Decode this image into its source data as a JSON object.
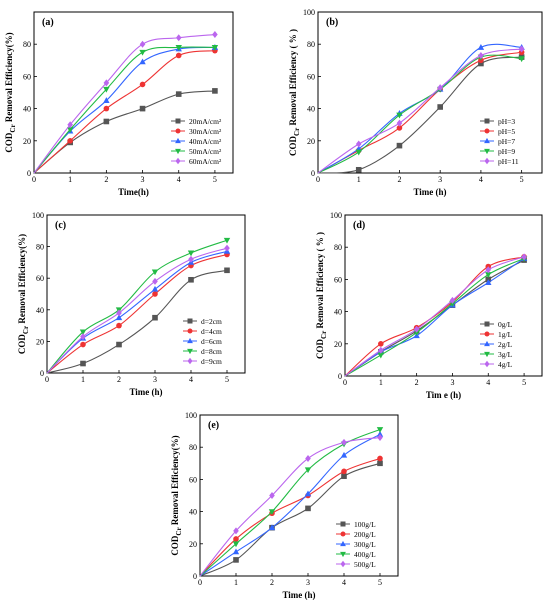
{
  "chart_data": [
    {
      "type": "line",
      "panel_label": "(a)",
      "xlabel": "Time(h)",
      "ylabel_main": "COD",
      "ylabel_sub": "Cr",
      "ylabel_rest": " Removal Efficiency(%)",
      "xlim": [
        0,
        5.5
      ],
      "ylim": [
        0,
        100
      ],
      "xticks": [
        "0",
        "1",
        "2",
        "3",
        "4",
        "5"
      ],
      "yticks": [
        "0",
        "20",
        "40",
        "60",
        "80"
      ],
      "legend_position": "lower-right",
      "x": [
        0,
        1,
        2,
        3,
        4,
        5
      ],
      "series": [
        {
          "name": "20mA/cm²",
          "color": "#555555",
          "marker": "square",
          "values": [
            0,
            19,
            32,
            40,
            49,
            51
          ]
        },
        {
          "name": "30mA/cm²",
          "color": "#ee3333",
          "marker": "circle",
          "values": [
            0,
            20,
            40,
            55,
            73,
            76
          ]
        },
        {
          "name": "40mA/cm²",
          "color": "#3366ff",
          "marker": "triangle-up",
          "values": [
            0,
            26,
            45,
            69,
            77,
            78
          ]
        },
        {
          "name": "50mA/cm²",
          "color": "#22bb44",
          "marker": "triangle-down",
          "values": [
            0,
            27,
            52,
            75,
            78,
            78
          ]
        },
        {
          "name": "60mA/cm²",
          "color": "#bb66ee",
          "marker": "diamond",
          "values": [
            0,
            30,
            56,
            80,
            84,
            86
          ]
        }
      ]
    },
    {
      "type": "line",
      "panel_label": "(b)",
      "xlabel": "Time (h)",
      "ylabel_main": "COD",
      "ylabel_sub": "Cr",
      "ylabel_rest": " Removal Efficiency ( % )",
      "xlim": [
        0,
        5.5
      ],
      "ylim": [
        0,
        100
      ],
      "xticks": [
        "0",
        "1",
        "2",
        "3",
        "4",
        "5"
      ],
      "yticks": [
        "0",
        "20",
        "40",
        "60",
        "80",
        "100"
      ],
      "legend_position": "lower-right",
      "x": [
        0,
        1,
        2,
        3,
        4,
        5
      ],
      "series": [
        {
          "name": "pH=3",
          "color": "#555555",
          "marker": "square",
          "values": [
            0,
            2,
            17,
            41,
            68,
            72
          ]
        },
        {
          "name": "pH=5",
          "color": "#ee3333",
          "marker": "circle",
          "values": [
            0,
            14,
            28,
            52,
            70,
            75
          ]
        },
        {
          "name": "pH=7",
          "color": "#3366ff",
          "marker": "triangle-up",
          "values": [
            0,
            15,
            37,
            52,
            78,
            78
          ]
        },
        {
          "name": "pH=9",
          "color": "#22bb44",
          "marker": "triangle-down",
          "values": [
            0,
            13,
            36,
            52,
            72,
            71
          ]
        },
        {
          "name": "pH=11",
          "color": "#bb66ee",
          "marker": "diamond",
          "values": [
            0,
            18,
            31,
            53,
            73,
            77
          ]
        }
      ]
    },
    {
      "type": "line",
      "panel_label": "(c)",
      "xlabel": "Time (h)",
      "ylabel_main": "COD",
      "ylabel_sub": "Cr",
      "ylabel_rest": " Removal Efficiency(%)",
      "xlim": [
        0,
        5.5
      ],
      "ylim": [
        0,
        100
      ],
      "xticks": [
        "0",
        "1",
        "2",
        "3",
        "4",
        "5"
      ],
      "yticks": [
        "0",
        "20",
        "40",
        "60",
        "80",
        "100"
      ],
      "legend_position": "lower-right",
      "x": [
        0,
        1,
        2,
        3,
        4,
        5
      ],
      "series": [
        {
          "name": "d=2cm",
          "color": "#555555",
          "marker": "square",
          "values": [
            0,
            6,
            18,
            35,
            59,
            65
          ]
        },
        {
          "name": "d=4cm",
          "color": "#ee3333",
          "marker": "circle",
          "values": [
            0,
            18,
            30,
            50,
            68,
            75
          ]
        },
        {
          "name": "d=6cm",
          "color": "#3366ff",
          "marker": "triangle-up",
          "values": [
            0,
            22,
            35,
            53,
            70,
            77
          ]
        },
        {
          "name": "d=8cm",
          "color": "#22bb44",
          "marker": "triangle-down",
          "values": [
            0,
            26,
            40,
            64,
            76,
            84
          ]
        },
        {
          "name": "d=9cm",
          "color": "#bb66ee",
          "marker": "diamond",
          "values": [
            0,
            23,
            38,
            58,
            72,
            79
          ]
        }
      ]
    },
    {
      "type": "line",
      "panel_label": "(d)",
      "xlabel": "Tim e (h)",
      "ylabel_main": "COD",
      "ylabel_sub": "Cr",
      "ylabel_rest": " Removal Efficiency ( % )",
      "xlim": [
        0,
        5.5
      ],
      "ylim": [
        0,
        100
      ],
      "xticks": [
        "0",
        "1",
        "2",
        "3",
        "4",
        "5"
      ],
      "yticks": [
        "0",
        "20",
        "40",
        "60",
        "80",
        "100"
      ],
      "legend_position": "lower-right",
      "x": [
        0,
        1,
        2,
        3,
        4,
        5
      ],
      "series": [
        {
          "name": "0g/L",
          "color": "#555555",
          "marker": "square",
          "values": [
            0,
            15,
            28,
            44,
            60,
            72
          ]
        },
        {
          "name": "1g/L",
          "color": "#ee3333",
          "marker": "circle",
          "values": [
            0,
            20,
            30,
            46,
            68,
            74
          ]
        },
        {
          "name": "2g/L",
          "color": "#3366ff",
          "marker": "triangle-up",
          "values": [
            0,
            15,
            25,
            44,
            58,
            73
          ]
        },
        {
          "name": "3g/L",
          "color": "#22bb44",
          "marker": "triangle-down",
          "values": [
            0,
            13,
            27,
            45,
            63,
            73
          ]
        },
        {
          "name": "4g/L",
          "color": "#bb66ee",
          "marker": "diamond",
          "values": [
            0,
            16,
            29,
            47,
            66,
            74
          ]
        }
      ]
    },
    {
      "type": "line",
      "panel_label": "(e)",
      "xlabel": "Time (h)",
      "ylabel_main": "COD",
      "ylabel_sub": "Cr",
      "ylabel_rest": " Removal Efficiency(%)",
      "xlim": [
        0,
        5.5
      ],
      "ylim": [
        0,
        100
      ],
      "xticks": [
        "0",
        "1",
        "2",
        "3",
        "4",
        "5"
      ],
      "yticks": [
        "0",
        "20",
        "40",
        "60",
        "80",
        "100"
      ],
      "legend_position": "lower-right",
      "x": [
        0,
        1,
        2,
        3,
        4,
        5
      ],
      "series": [
        {
          "name": "100g/L",
          "color": "#555555",
          "marker": "square",
          "values": [
            0,
            10,
            30,
            42,
            62,
            70
          ]
        },
        {
          "name": "200g/L",
          "color": "#ee3333",
          "marker": "circle",
          "values": [
            0,
            23,
            39,
            50,
            65,
            73
          ]
        },
        {
          "name": "300g/L",
          "color": "#3366ff",
          "marker": "triangle-up",
          "values": [
            0,
            15,
            30,
            51,
            75,
            88
          ]
        },
        {
          "name": "400g/L",
          "color": "#22bb44",
          "marker": "triangle-down",
          "values": [
            0,
            20,
            40,
            66,
            82,
            91
          ]
        },
        {
          "name": "500g/L",
          "color": "#bb66ee",
          "marker": "diamond",
          "values": [
            0,
            28,
            50,
            73,
            83,
            86
          ]
        }
      ]
    }
  ]
}
